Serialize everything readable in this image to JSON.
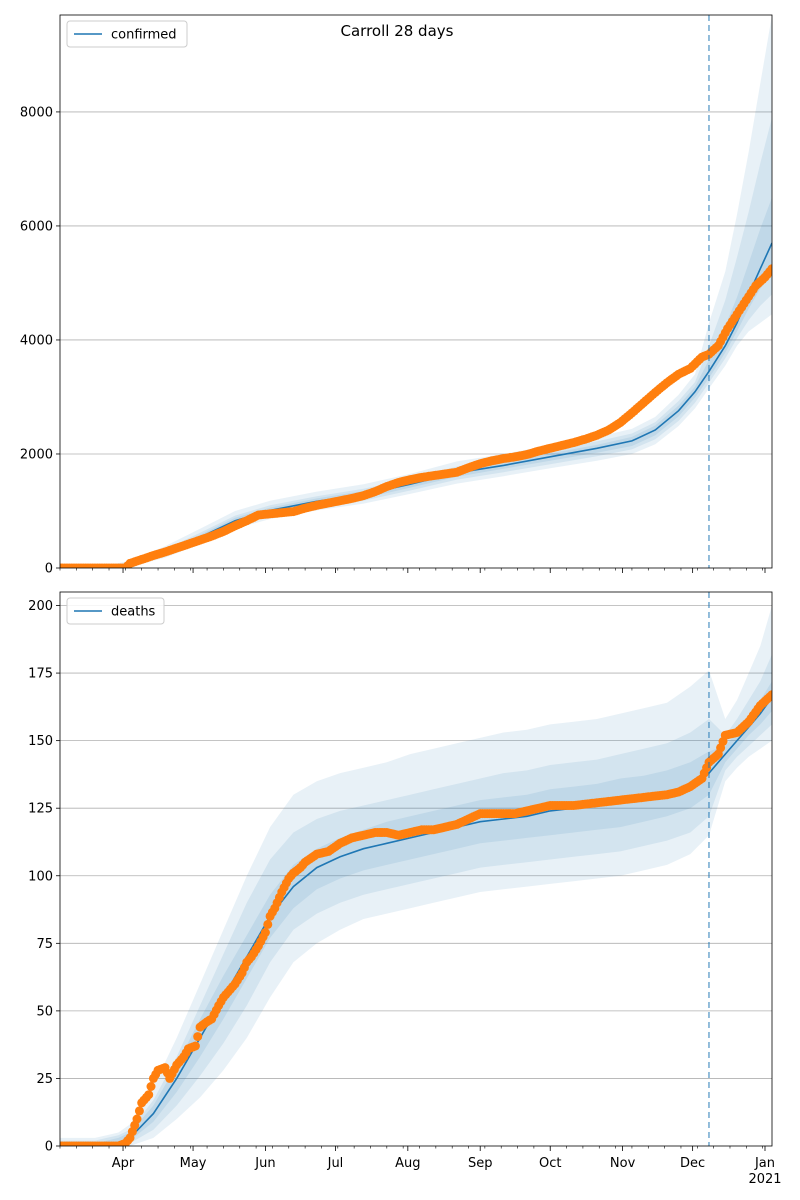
{
  "chart_data": [
    {
      "type": "line",
      "title": "Carroll 28 days",
      "legend": {
        "label": "confirmed",
        "placement": "top-left"
      },
      "ylim": [
        0,
        9700
      ],
      "yticks": [
        0,
        2000,
        4000,
        6000,
        8000
      ],
      "ytick_labels": [
        "0",
        "2000",
        "4000",
        "6000",
        "8000"
      ],
      "grid": "y",
      "forecast_start_day": 278,
      "model": {
        "x": [
          0,
          20,
          30,
          45,
          60,
          75,
          90,
          110,
          130,
          150,
          170,
          190,
          210,
          230,
          245,
          255,
          265,
          272,
          278,
          285,
          290,
          295,
          300,
          305
        ],
        "y": [
          0,
          0,
          60,
          270,
          540,
          830,
          1010,
          1170,
          1290,
          1470,
          1670,
          1800,
          1950,
          2100,
          2230,
          2420,
          2760,
          3090,
          3450,
          3900,
          4300,
          4800,
          5250,
          5700
        ]
      },
      "bands": [
        {
          "lower": [
            0,
            0,
            20,
            180,
            420,
            690,
            860,
            1010,
            1130,
            1300,
            1480,
            1610,
            1750,
            1880,
            2000,
            2170,
            2490,
            2800,
            3150,
            3550,
            3900,
            4150,
            4300,
            4450
          ],
          "upper": [
            0,
            40,
            130,
            380,
            690,
            1000,
            1180,
            1340,
            1470,
            1650,
            1870,
            2000,
            2150,
            2300,
            2440,
            2650,
            3040,
            3400,
            4300,
            5200,
            6200,
            7300,
            8500,
            9700
          ]
        },
        {
          "lower": [
            0,
            0,
            35,
            215,
            470,
            740,
            910,
            1060,
            1180,
            1360,
            1550,
            1680,
            1820,
            1960,
            2080,
            2260,
            2580,
            2900,
            3250,
            3680,
            4030,
            4350,
            4600,
            4800
          ],
          "upper": [
            0,
            25,
            100,
            330,
            620,
            920,
            1100,
            1260,
            1390,
            1570,
            1780,
            1910,
            2070,
            2220,
            2360,
            2560,
            2930,
            3260,
            3900,
            4700,
            5450,
            6250,
            7100,
            7900
          ]
        },
        {
          "lower": [
            0,
            0,
            45,
            240,
            500,
            780,
            950,
            1100,
            1220,
            1410,
            1600,
            1740,
            1880,
            2020,
            2140,
            2330,
            2660,
            2990,
            3330,
            3780,
            4150,
            4550,
            4900,
            5150
          ],
          "upper": [
            0,
            12,
            80,
            300,
            580,
            880,
            1060,
            1220,
            1350,
            1530,
            1730,
            1860,
            2010,
            2160,
            2300,
            2500,
            2850,
            3180,
            3650,
            4250,
            4750,
            5350,
            5950,
            6500
          ]
        }
      ],
      "observed": {
        "x": [
          0,
          10,
          20,
          28,
          30,
          35,
          40,
          45,
          50,
          55,
          60,
          65,
          70,
          75,
          80,
          85,
          90,
          95,
          100,
          105,
          110,
          115,
          120,
          125,
          130,
          135,
          140,
          145,
          150,
          155,
          160,
          165,
          170,
          175,
          180,
          185,
          190,
          195,
          200,
          205,
          210,
          215,
          220,
          225,
          230,
          235,
          240,
          245,
          250,
          255,
          260,
          265,
          270,
          275,
          278,
          282,
          286,
          290,
          294,
          298,
          302,
          305
        ],
        "y": [
          0,
          0,
          0,
          0,
          80,
          150,
          220,
          280,
          350,
          420,
          490,
          560,
          640,
          740,
          830,
          930,
          950,
          970,
          990,
          1050,
          1100,
          1140,
          1180,
          1220,
          1270,
          1340,
          1430,
          1500,
          1550,
          1590,
          1620,
          1650,
          1680,
          1760,
          1830,
          1880,
          1920,
          1950,
          1990,
          2050,
          2100,
          2150,
          2200,
          2260,
          2330,
          2420,
          2550,
          2720,
          2900,
          3080,
          3250,
          3400,
          3500,
          3700,
          3750,
          3900,
          4200,
          4450,
          4700,
          4950,
          5100,
          5250
        ]
      }
    },
    {
      "type": "line",
      "legend": {
        "label": "deaths",
        "placement": "top-left"
      },
      "ylim": [
        0,
        205
      ],
      "yticks": [
        0,
        25,
        50,
        75,
        100,
        125,
        150,
        175,
        200
      ],
      "ytick_labels": [
        "0",
        "25",
        "50",
        "75",
        "100",
        "125",
        "150",
        "175",
        "200"
      ],
      "grid": "y",
      "forecast_start_day": 278,
      "x_tick_positions": [
        27,
        57,
        88,
        118,
        149,
        180,
        210,
        241,
        271,
        302
      ],
      "x_tick_labels": [
        "Apr",
        "May",
        "Jun",
        "Jul",
        "Aug",
        "Sep",
        "Oct",
        "Nov",
        "Dec",
        "Jan\n2021"
      ],
      "model": {
        "x": [
          0,
          15,
          20,
          25,
          30,
          40,
          50,
          60,
          70,
          80,
          90,
          100,
          110,
          120,
          130,
          140,
          150,
          160,
          170,
          180,
          190,
          200,
          210,
          220,
          230,
          240,
          250,
          260,
          270,
          278,
          285,
          290,
          295,
          300,
          305
        ],
        "y": [
          0,
          0,
          0.5,
          1,
          3,
          12,
          25,
          40,
          55,
          70,
          85,
          96,
          103,
          107,
          110,
          112,
          114,
          116,
          118,
          120,
          121,
          122,
          124,
          125,
          126,
          127,
          128,
          130,
          133,
          138,
          145,
          150,
          155,
          160,
          166
        ]
      },
      "bands": [
        {
          "lower": [
            0,
            0,
            0,
            0,
            0,
            3,
            10,
            18,
            28,
            40,
            55,
            68,
            75,
            80,
            84,
            86,
            88,
            90,
            92,
            94,
            95,
            96,
            97,
            98,
            99,
            100,
            102,
            104,
            108,
            115,
            135,
            140,
            144,
            147,
            150
          ],
          "upper": [
            3,
            3,
            4,
            5,
            8,
            22,
            40,
            60,
            80,
            100,
            118,
            130,
            135,
            138,
            140,
            142,
            145,
            147,
            149,
            151,
            153,
            154,
            156,
            157,
            158,
            160,
            162,
            164,
            170,
            176,
            158,
            165,
            175,
            185,
            200
          ]
        },
        {
          "lower": [
            0,
            0,
            0,
            0,
            1,
            6,
            15,
            26,
            38,
            52,
            68,
            80,
            86,
            90,
            93,
            95,
            97,
            99,
            101,
            103,
            104,
            105,
            106,
            107,
            108,
            109,
            111,
            113,
            116,
            122,
            139,
            144,
            148,
            152,
            156
          ],
          "upper": [
            2,
            2,
            3,
            4,
            6,
            17,
            33,
            52,
            71,
            90,
            106,
            116,
            121,
            124,
            126,
            128,
            130,
            132,
            134,
            136,
            138,
            139,
            141,
            142,
            143,
            145,
            147,
            149,
            153,
            158,
            152,
            158,
            165,
            172,
            182
          ]
        },
        {
          "lower": [
            0,
            0,
            0,
            0.5,
            2,
            9,
            20,
            33,
            47,
            62,
            77,
            88,
            95,
            99,
            102,
            104,
            106,
            108,
            110,
            112,
            113,
            114,
            115,
            116,
            117,
            118,
            120,
            122,
            125,
            130,
            142,
            147,
            152,
            156,
            161
          ],
          "upper": [
            1,
            1,
            2,
            3,
            5,
            15,
            30,
            47,
            63,
            78,
            93,
            104,
            110,
            114,
            117,
            120,
            122,
            124,
            126,
            128,
            129,
            130,
            132,
            133,
            134,
            136,
            137,
            139,
            142,
            146,
            148,
            153,
            159,
            165,
            172
          ]
        }
      ],
      "observed": {
        "x": [
          0,
          10,
          20,
          25,
          28,
          30,
          33,
          35,
          37,
          38,
          40,
          42,
          45,
          47,
          50,
          53,
          55,
          58,
          60,
          63,
          65,
          68,
          70,
          73,
          75,
          78,
          80,
          82,
          85,
          88,
          90,
          92,
          95,
          98,
          100,
          103,
          105,
          110,
          115,
          120,
          125,
          130,
          135,
          140,
          145,
          150,
          155,
          160,
          165,
          170,
          175,
          180,
          185,
          190,
          195,
          200,
          205,
          210,
          220,
          230,
          240,
          250,
          260,
          265,
          270,
          275,
          278,
          282,
          285,
          290,
          295,
          300,
          305
        ],
        "y": [
          0,
          0,
          0,
          0,
          1,
          3,
          10,
          16,
          18,
          19,
          25,
          28,
          29,
          25,
          30,
          33,
          36,
          37,
          44,
          46,
          47,
          52,
          55,
          58,
          60,
          64,
          68,
          70,
          74,
          79,
          85,
          88,
          94,
          99,
          101,
          103,
          105,
          108,
          109,
          112,
          114,
          115,
          116,
          116,
          115,
          116,
          117,
          117,
          118,
          119,
          121,
          123,
          123,
          123,
          123,
          124,
          125,
          126,
          126,
          127,
          128,
          129,
          130,
          131,
          133,
          136,
          142,
          145,
          152,
          153,
          157,
          163,
          167
        ]
      }
    }
  ]
}
